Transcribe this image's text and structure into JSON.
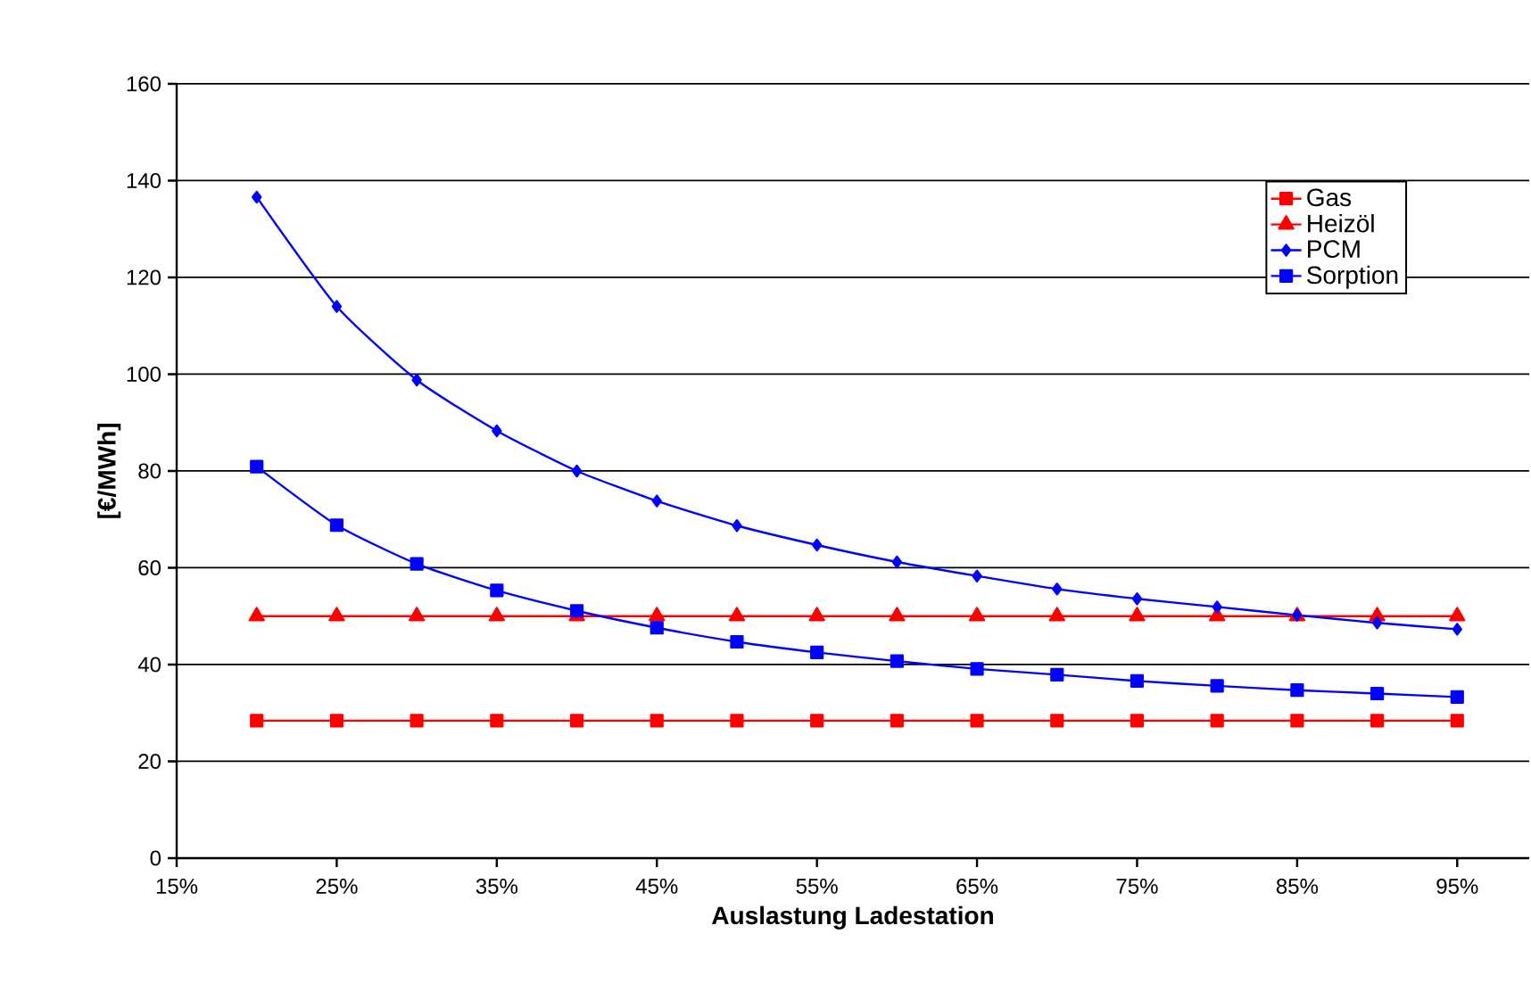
{
  "chart_data": {
    "type": "line",
    "xlabel": "Auslastung Ladestation",
    "ylabel": "[€/MWh]",
    "x": [
      20,
      25,
      30,
      35,
      40,
      45,
      50,
      55,
      60,
      65,
      70,
      75,
      80,
      85,
      90,
      95
    ],
    "xlim": [
      15,
      99.5
    ],
    "xticks": [
      {
        "value": 15,
        "label": "15%"
      },
      {
        "value": 25,
        "label": "25%"
      },
      {
        "value": 35,
        "label": "35%"
      },
      {
        "value": 45,
        "label": "45%"
      },
      {
        "value": 55,
        "label": "55%"
      },
      {
        "value": 65,
        "label": "65%"
      },
      {
        "value": 75,
        "label": "75%"
      },
      {
        "value": 85,
        "label": "85%"
      },
      {
        "value": 95,
        "label": "95%"
      }
    ],
    "ylim": [
      0,
      160
    ],
    "yticks": [
      0,
      20,
      40,
      60,
      80,
      100,
      120,
      140,
      160
    ],
    "grid": "y",
    "legend": "top right",
    "line_style": "solid",
    "series": [
      {
        "name": "Gas",
        "color": "#ff0000",
        "marker": "square",
        "values": [
          28.4,
          28.4,
          28.4,
          28.4,
          28.4,
          28.4,
          28.4,
          28.4,
          28.4,
          28.4,
          28.4,
          28.4,
          28.4,
          28.4,
          28.4,
          28.4
        ]
      },
      {
        "name": "Heizöl",
        "color": "#ff0000",
        "marker": "triangle",
        "values": [
          50,
          50,
          50,
          50,
          50,
          50,
          50,
          50,
          50,
          50,
          50,
          50,
          50,
          50,
          50,
          50
        ]
      },
      {
        "name": "PCM",
        "color": "#0000ff",
        "marker": "diamond",
        "values": [
          136.6,
          114,
          98.8,
          88.3,
          80,
          73.8,
          68.7,
          64.7,
          61.2,
          58.3,
          55.6,
          53.6,
          51.9,
          50.2,
          48.6,
          47.3
        ]
      },
      {
        "name": "Sorption",
        "color": "#0000ff",
        "marker": "square",
        "values": [
          80.9,
          68.8,
          60.8,
          55.3,
          51.1,
          47.6,
          44.7,
          42.5,
          40.7,
          39.1,
          37.9,
          36.6,
          35.6,
          34.7,
          34.0,
          33.3
        ]
      }
    ]
  }
}
